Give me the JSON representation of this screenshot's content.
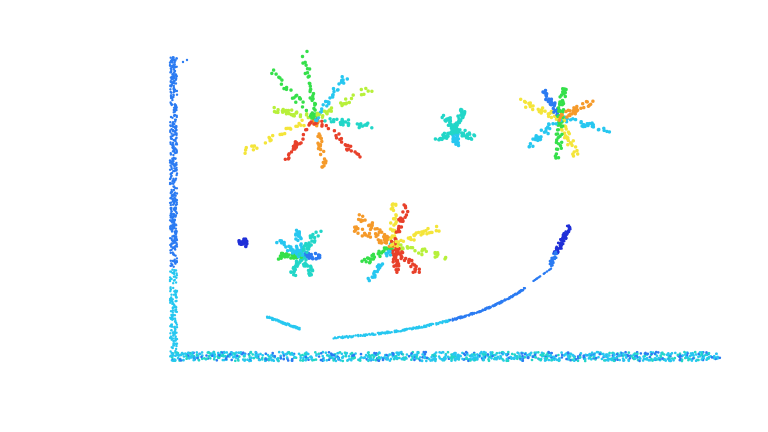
{
  "scene": {
    "kind": "point-cloud-render",
    "background": "#ffffff",
    "colormap": "jet",
    "colors": {
      "deep_blue": "#1f2fd8",
      "blue": "#2b7bf2",
      "cyan": "#27c7f0",
      "teal": "#22d6c8",
      "green": "#35e04a",
      "yellow_green": "#b7f03a",
      "yellow": "#f4e53a",
      "orange": "#f59a2a",
      "red": "#e8402a"
    },
    "objects": [
      "ground-plane",
      "back-wall",
      "plant-top-left",
      "plant-top-center",
      "plant-top-right",
      "plant-bottom-left",
      "plant-bottom-center",
      "curved-pipe",
      "small-blob"
    ]
  }
}
